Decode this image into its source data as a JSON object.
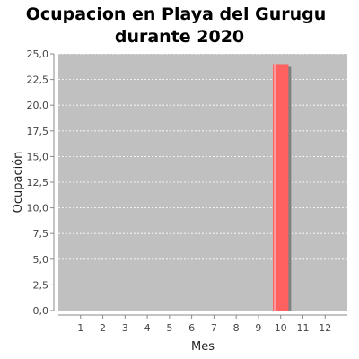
{
  "chart_data": {
    "type": "bar",
    "title_lines": [
      "Ocupacion en  Playa del Gurugu",
      "durante 2020"
    ],
    "xlabel": "Mes",
    "ylabel": "Ocupación",
    "categories": [
      "1",
      "2",
      "3",
      "4",
      "5",
      "6",
      "7",
      "8",
      "9",
      "10",
      "11",
      "12"
    ],
    "values": [
      0,
      0,
      0,
      0,
      0,
      0,
      0,
      0,
      0,
      24,
      0,
      0
    ],
    "ylim": [
      0,
      25
    ],
    "yticks": [
      "0,0",
      "2,5",
      "5,0",
      "7,5",
      "10,0",
      "12,5",
      "15,0",
      "17,5",
      "20,0",
      "22,5",
      "25,0"
    ],
    "grid": true,
    "colors": {
      "plot_background": "#c0c0c0",
      "gridline": "#ffffff",
      "bar": "#ff6060",
      "bar_highlight": "#ff9a9a",
      "bar_shadow": "#808080"
    }
  }
}
